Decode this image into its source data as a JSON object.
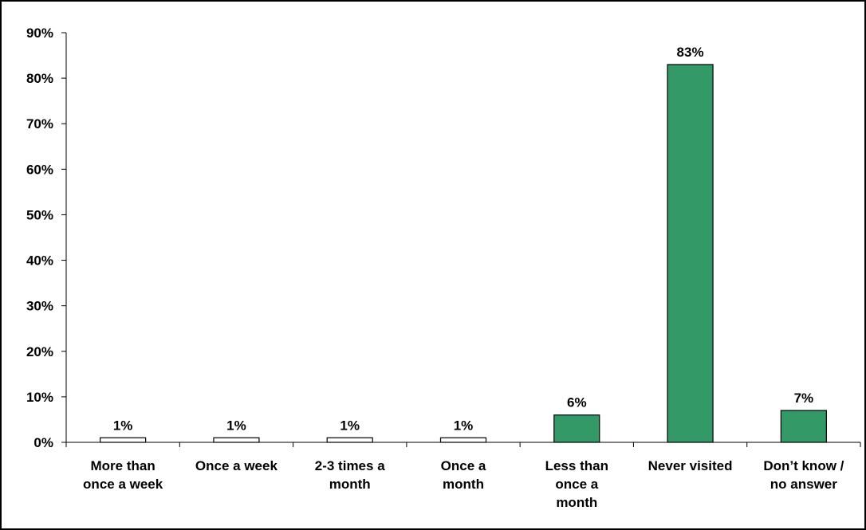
{
  "chart_data": {
    "type": "bar",
    "categories": [
      [
        "More than",
        "once a week"
      ],
      [
        "Once a week"
      ],
      [
        "2-3 times a",
        "month"
      ],
      [
        "Once a",
        "month"
      ],
      [
        "Less than",
        "once a",
        "month"
      ],
      [
        "Never visited"
      ],
      [
        "Don’t know /",
        "no answer"
      ]
    ],
    "values": [
      1,
      1,
      1,
      1,
      6,
      83,
      7
    ],
    "data_labels": [
      "1%",
      "1%",
      "1%",
      "1%",
      "6%",
      "83%",
      "7%"
    ],
    "bar_colors": [
      "#ffffff",
      "#ffffff",
      "#ffffff",
      "#ffffff",
      "#339966",
      "#339966",
      "#339966"
    ],
    "ylim": [
      0,
      90
    ],
    "y_ticks": [
      "0%",
      "10%",
      "20%",
      "30%",
      "40%",
      "50%",
      "60%",
      "70%",
      "80%",
      "90%"
    ],
    "grid": false,
    "legend": "none"
  }
}
